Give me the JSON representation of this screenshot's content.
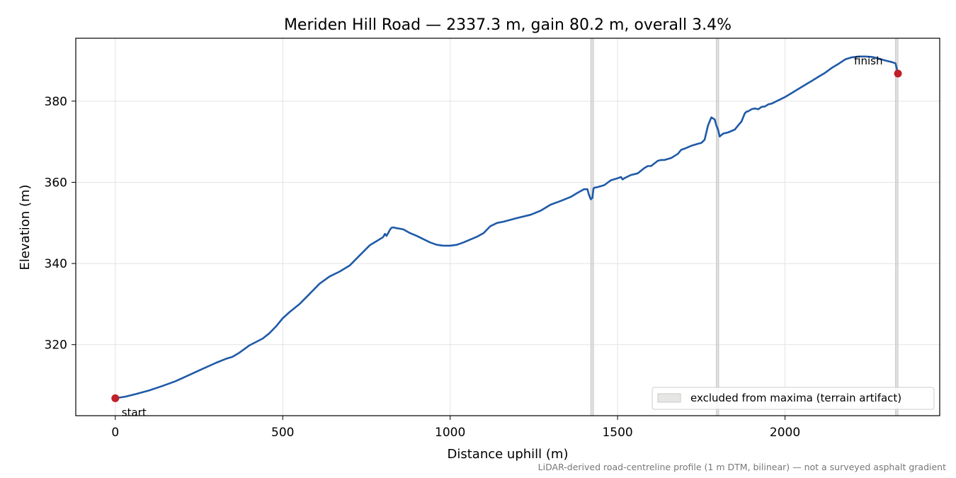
{
  "chart_data": {
    "type": "line",
    "title": "Meriden Hill Road — 2337.3 m, gain 80.2 m, overall 3.4%",
    "xlabel": "Distance uphill (m)",
    "ylabel": "Elevation (m)",
    "xlim": [
      -118,
      2462
    ],
    "ylim": [
      302.5,
      395.5
    ],
    "xticks": [
      0,
      500,
      1000,
      1500,
      2000
    ],
    "yticks": [
      320,
      340,
      360,
      380
    ],
    "grid": true,
    "line_color": "#1f5aa8",
    "marker_color": "#c0202a",
    "band_color": "#c8c8c8",
    "series": [
      {
        "x": [
          0,
          30,
          60,
          100,
          140,
          180,
          220,
          260,
          300,
          330,
          350,
          370,
          400,
          440,
          460,
          480,
          500,
          520,
          550,
          580,
          610,
          640,
          670,
          700,
          730,
          760,
          780,
          800,
          805,
          810,
          815,
          820,
          825,
          830,
          840,
          860,
          880,
          900,
          920,
          940,
          960,
          980,
          1000,
          1020,
          1040,
          1060,
          1080,
          1100,
          1120,
          1140,
          1160,
          1200,
          1240,
          1270,
          1300,
          1330,
          1360,
          1380,
          1400,
          1410,
          1415,
          1420,
          1425,
          1428,
          1432,
          1440,
          1460,
          1480,
          1500,
          1510,
          1515,
          1520,
          1540,
          1560,
          1580,
          1590,
          1600,
          1620,
          1630,
          1640,
          1660,
          1670,
          1680,
          1690,
          1700,
          1720,
          1740,
          1750,
          1760,
          1770,
          1780,
          1790,
          1795,
          1800,
          1805,
          1815,
          1830,
          1850,
          1860,
          1870,
          1880,
          1885,
          1890,
          1900,
          1910,
          1920,
          1930,
          1940,
          1950,
          1960,
          1980,
          2000,
          2020,
          2040,
          2060,
          2080,
          2100,
          2120,
          2140,
          2160,
          2180,
          2200,
          2220,
          2240,
          2260,
          2280,
          2300,
          2320,
          2330,
          2337.3
        ],
        "y": [
          306.8,
          307.2,
          307.8,
          308.7,
          309.8,
          311.0,
          312.5,
          314.0,
          315.5,
          316.5,
          317.0,
          318.0,
          319.8,
          321.5,
          322.8,
          324.5,
          326.5,
          328.0,
          330.0,
          332.5,
          335.0,
          336.8,
          338.0,
          339.5,
          342.0,
          344.5,
          345.5,
          346.5,
          347.3,
          346.8,
          347.5,
          348.3,
          348.8,
          348.9,
          348.7,
          348.4,
          347.5,
          346.8,
          346.0,
          345.2,
          344.6,
          344.4,
          344.4,
          344.6,
          345.2,
          345.9,
          346.6,
          347.5,
          349.2,
          350.0,
          350.3,
          351.2,
          352.0,
          353.0,
          354.5,
          355.4,
          356.4,
          357.4,
          358.3,
          358.3,
          356.8,
          355.8,
          356.2,
          358.5,
          358.7,
          358.8,
          359.3,
          360.5,
          361.0,
          361.3,
          360.7,
          361.0,
          361.8,
          362.2,
          363.5,
          364.0,
          364.0,
          365.3,
          365.5,
          365.5,
          366.0,
          366.5,
          367.0,
          368.0,
          368.3,
          369.0,
          369.5,
          369.7,
          370.5,
          374.0,
          376.0,
          375.5,
          374.0,
          373.0,
          371.3,
          372.0,
          372.3,
          373.0,
          374.0,
          375.0,
          377.0,
          377.4,
          377.5,
          378.0,
          378.2,
          378.0,
          378.6,
          378.7,
          379.2,
          379.4,
          380.2,
          381.0,
          382.0,
          383.0,
          384.0,
          385.0,
          386.0,
          387.0,
          388.2,
          389.2,
          390.3,
          390.8,
          391.0,
          391.0,
          390.9,
          390.5,
          390.0,
          389.6,
          389.3,
          386.8
        ]
      }
    ],
    "excluded_bands": [
      [
        1420,
        1428
      ],
      [
        1795,
        1802
      ],
      [
        2330,
        2337.3
      ]
    ],
    "legend": {
      "label": "excluded from maxima (terrain artifact)",
      "position": "lower right"
    },
    "markers": [
      {
        "x": 0,
        "y": 306.8,
        "label": "start"
      },
      {
        "x": 2337.3,
        "y": 386.8,
        "label": "finish"
      }
    ]
  },
  "caption": "LiDAR-derived road-centreline profile (1 m DTM, bilinear) — not a surveyed asphalt gradient"
}
